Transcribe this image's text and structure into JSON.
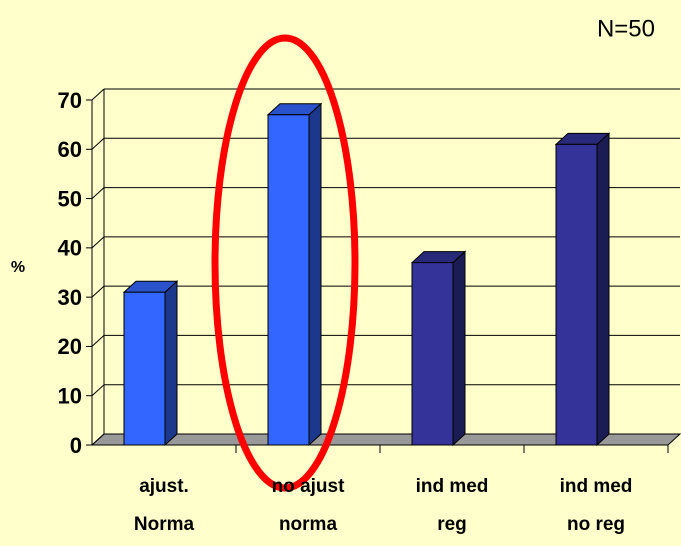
{
  "chart_data": {
    "type": "bar3d",
    "annotation": "N=50",
    "ylabel": "%",
    "categories": [
      [
        "ajust.",
        "Norma"
      ],
      [
        "no ajust",
        "norma"
      ],
      [
        "ind med",
        "reg"
      ],
      [
        "ind med",
        "no reg"
      ]
    ],
    "values": [
      31,
      67,
      37,
      61
    ],
    "colors": [
      "#3366ff",
      "#3366ff",
      "#333399",
      "#333399"
    ],
    "ylim": [
      0,
      70
    ],
    "yticks": [
      0,
      10,
      20,
      30,
      40,
      50,
      60,
      70
    ],
    "grid": true
  }
}
